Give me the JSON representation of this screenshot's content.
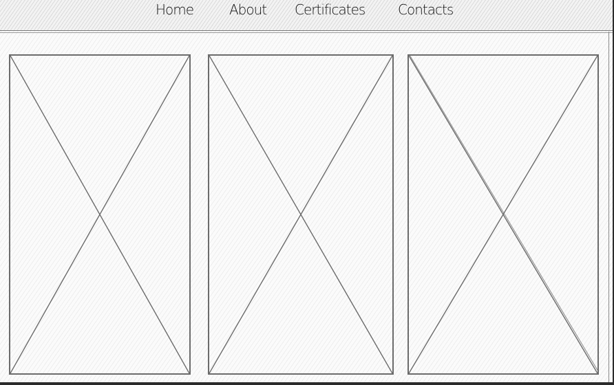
{
  "nav": {
    "items": [
      {
        "label": "Home"
      },
      {
        "label": "About"
      },
      {
        "label": "Certificates"
      },
      {
        "label": "Contacts"
      }
    ]
  },
  "placeholders": [
    {
      "type": "image-placeholder"
    },
    {
      "type": "image-placeholder"
    },
    {
      "type": "image-placeholder"
    }
  ],
  "colors": {
    "stroke": "#6b6b6b",
    "background": "#fbfbfb",
    "frame": "#2b2b2b"
  }
}
